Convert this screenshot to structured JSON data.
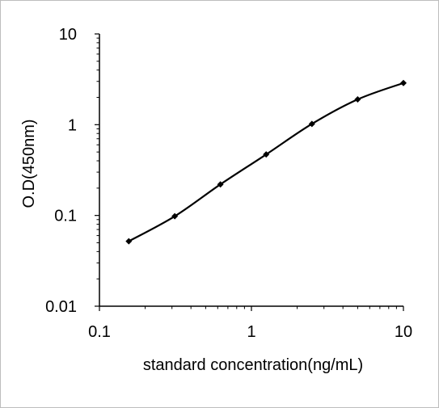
{
  "chart_data": {
    "type": "line",
    "xlabel": "standard concentration(ng/mL)",
    "ylabel": "O.D(450nm)",
    "x_scale": "log",
    "y_scale": "log",
    "xlim": [
      0.1,
      10
    ],
    "ylim": [
      0.01,
      10
    ],
    "x_ticks": [
      {
        "value": 0.1,
        "label": "0.1"
      },
      {
        "value": 1,
        "label": "1"
      },
      {
        "value": 10,
        "label": "10"
      }
    ],
    "y_ticks": [
      {
        "value": 10,
        "label": "10"
      },
      {
        "value": 1,
        "label": "1"
      },
      {
        "value": 0.1,
        "label": "0.1"
      },
      {
        "value": 0.01,
        "label": "0.01"
      }
    ],
    "grid": false,
    "legend": "none",
    "series": [
      {
        "x": [
          0.156,
          0.313,
          0.625,
          1.25,
          2.5,
          5,
          10
        ],
        "y": [
          0.052,
          0.098,
          0.22,
          0.47,
          1.02,
          1.9,
          2.88
        ],
        "color": "#000000",
        "marker": "diamond"
      }
    ]
  }
}
